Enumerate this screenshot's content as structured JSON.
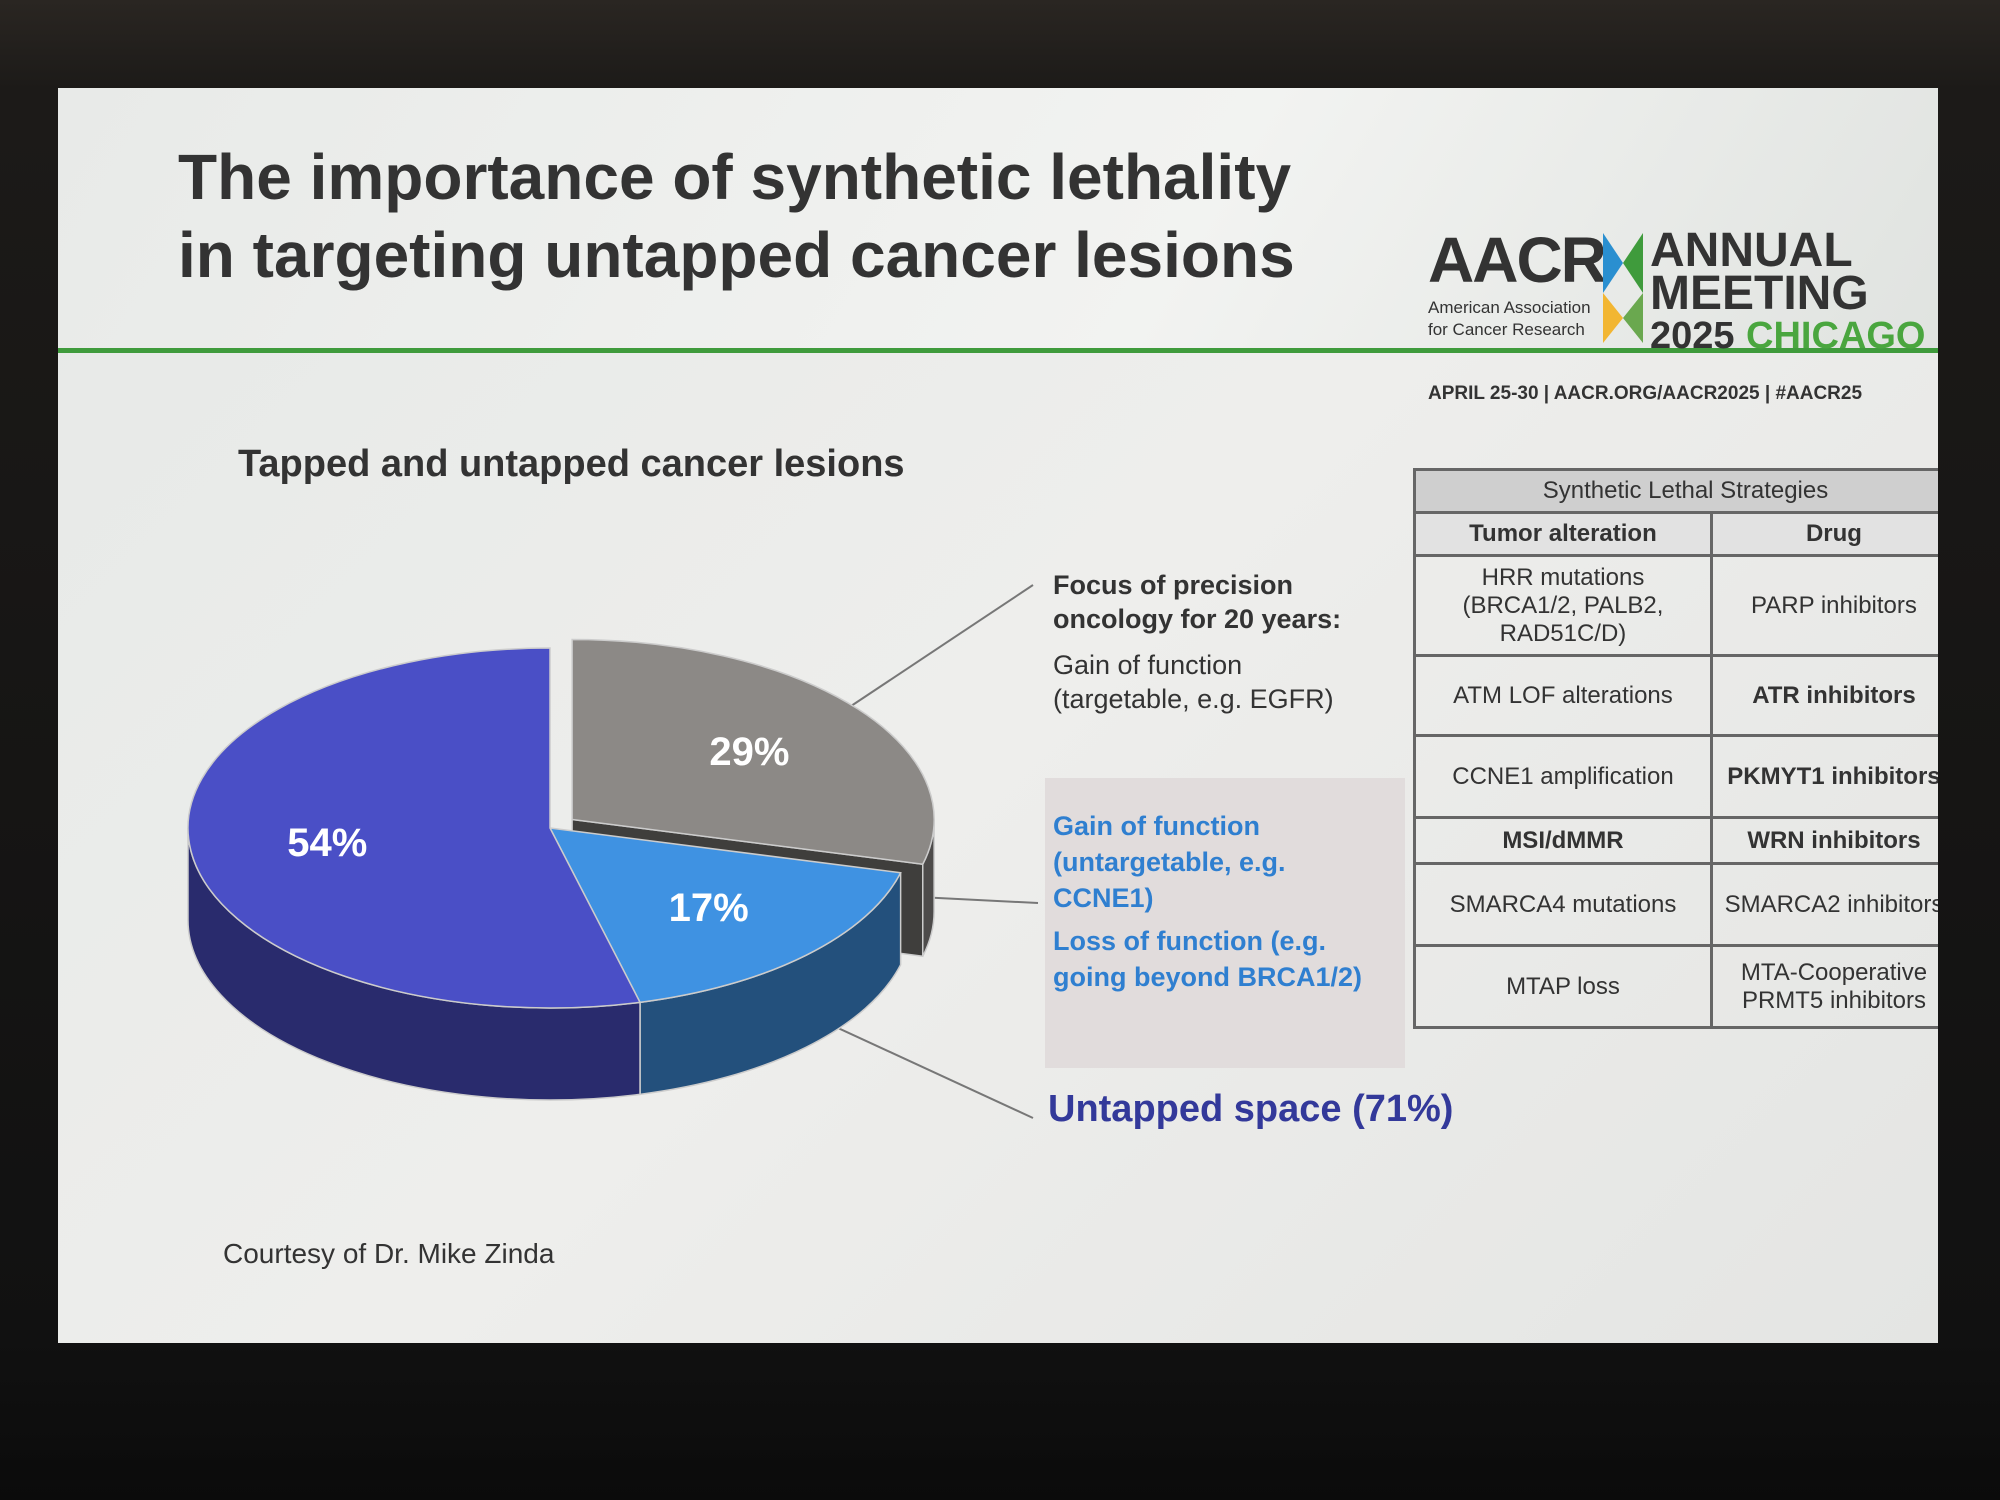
{
  "slide": {
    "title": "The importance of synthetic lethality in targeting untapped cancer lesions",
    "logo": {
      "brand": "AACR",
      "org_line1": "American Association",
      "org_line2": "for Cancer Research",
      "meeting_line1": "ANNUAL",
      "meeting_line2": "MEETING",
      "year": "2025",
      "city": "CHICAGO",
      "info": "APRIL 25-30 | AACR.ORG/AACR2025 | #AACR25"
    },
    "courtesy": "Courtesy of Dr. Mike Zinda"
  },
  "chart_data": {
    "type": "pie",
    "title": "Tapped and untapped cancer lesions",
    "values": [
      29,
      17,
      54
    ],
    "value_labels": [
      "29%",
      "17%",
      "54%"
    ],
    "colors": [
      "#8c8986",
      "#3f92e2",
      "#4a4fc6"
    ],
    "exploded": [
      true,
      false,
      false
    ],
    "annotations": [
      "Focus of precision oncology for 20 years:",
      "Gain of function (targetable, e.g. EGFR)",
      "Gain of function (untargetable, e.g. CCNE1)",
      "Loss of function (e.g. going beyond BRCA1/2)",
      "Untapped space (71%)"
    ]
  },
  "table": {
    "title": "Synthetic Lethal Strategies",
    "header": [
      "Tumor alteration",
      "Drug"
    ],
    "rows": [
      [
        "HRR mutations (BRCA1/2, PALB2, RAD51C/D)",
        "PARP inhibitors"
      ],
      [
        "ATM LOF alterations",
        "ATR inhibitors"
      ],
      [
        "CCNE1 amplification",
        "PKMYT1 inhibitors"
      ],
      [
        "MSI/dMMR",
        "WRN inhibitors"
      ],
      [
        "SMARCA4 mutations",
        "SMARCA2 inhibitors"
      ],
      [
        "MTAP loss",
        "MTA-Cooperative PRMT5 inhibitors"
      ]
    ]
  }
}
